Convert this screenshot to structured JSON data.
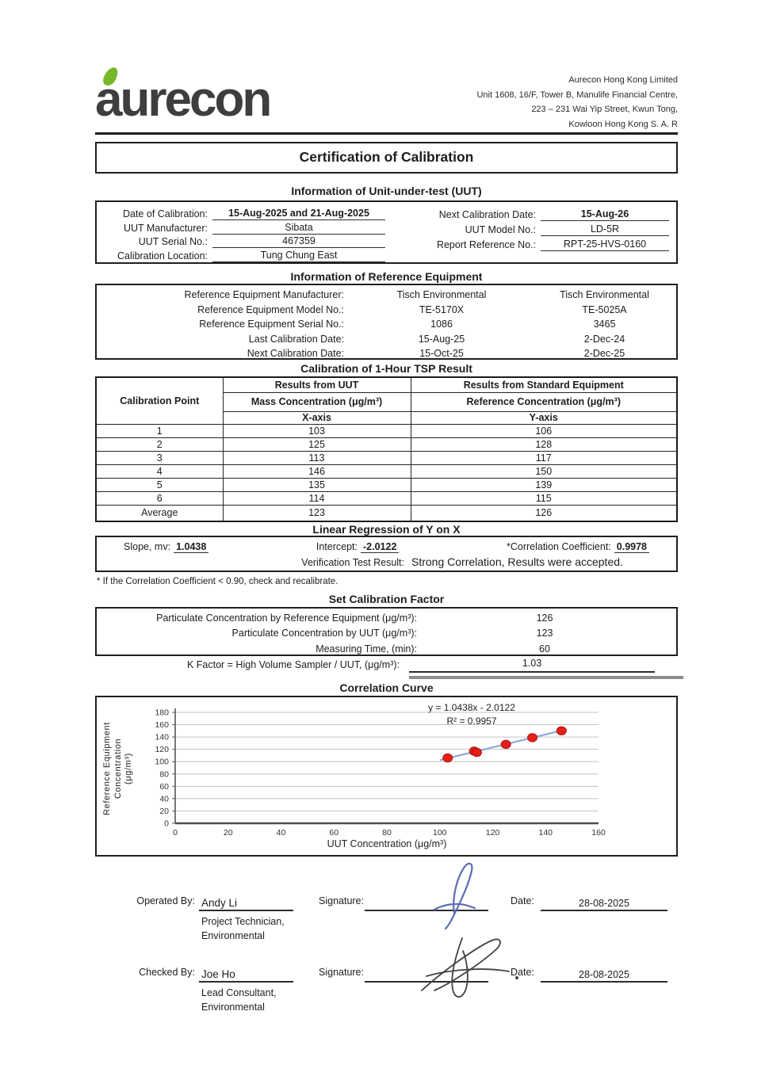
{
  "header": {
    "logo_text": "aurecon",
    "address_lines": [
      "Aurecon Hong Kong Limited",
      "Unit 1608, 16/F, Tower B, Manulife Financial Centre,",
      "223 – 231 Wai Yip Street, Kwun Tong,",
      "Kowloon Hong Kong S. A. R"
    ]
  },
  "title": "Certification of Calibration",
  "uut": {
    "section_title": "Information of Unit-under-test (UUT)",
    "left": [
      {
        "label": "Date of Calibration:",
        "value": "15-Aug-2025 and 21-Aug-2025"
      },
      {
        "label": "UUT Manufacturer:",
        "value": "Sibata"
      },
      {
        "label": "UUT Serial No.:",
        "value": "467359"
      },
      {
        "label": "Calibration Location:",
        "value": "Tung Chung East"
      }
    ],
    "right": [
      {
        "label": "Next Calibration Date:",
        "value": "15-Aug-26"
      },
      {
        "label": "UUT Model No.:",
        "value": "LD-5R"
      },
      {
        "label": "Report Reference No.:",
        "value": "RPT-25-HVS-0160"
      }
    ]
  },
  "reference": {
    "section_title": "Information of Reference Equipment",
    "rows": [
      {
        "label": "Reference Equipment Manufacturer:",
        "col1": "Tisch Environmental",
        "col2": "Tisch Environmental"
      },
      {
        "label": "Reference Equipment Model No.:",
        "col1": "TE-5170X",
        "col2": "TE-5025A"
      },
      {
        "label": "Reference Equipment Serial No.:",
        "col1": "1086",
        "col2": "3465"
      },
      {
        "label": "Last Calibration Date:",
        "col1": "15-Aug-25",
        "col2": "2-Dec-24"
      },
      {
        "label": "Next Calibration Date:",
        "col1": "15-Oct-25",
        "col2": "2-Dec-25"
      }
    ]
  },
  "tsp": {
    "section_title": "Calibration of 1-Hour TSP Result",
    "col_point": "Calibration Point",
    "col_uut": "Results from UUT",
    "col_std": "Results from Standard Equipment",
    "sub_uut": "Mass Concentration (μg/m³)",
    "sub_std": "Reference Concentration (μg/m³)",
    "axis_x": "X-axis",
    "axis_y": "Y-axis",
    "rows": [
      {
        "point": "1",
        "uut": "103",
        "std": "106"
      },
      {
        "point": "2",
        "uut": "125",
        "std": "128"
      },
      {
        "point": "3",
        "uut": "113",
        "std": "117"
      },
      {
        "point": "4",
        "uut": "146",
        "std": "150"
      },
      {
        "point": "5",
        "uut": "135",
        "std": "139"
      },
      {
        "point": "6",
        "uut": "114",
        "std": "115"
      },
      {
        "point": "Average",
        "uut": "123",
        "std": "126"
      }
    ]
  },
  "regression": {
    "section_title": "Linear Regression of Y on X",
    "slope_label": "Slope, mv:",
    "slope": "1.0438",
    "intercept_label": "Intercept:",
    "intercept": "-2.0122",
    "corr_label": "*Correlation Coefficient:",
    "corr": "0.9978",
    "verification_label": "Verification Test Result:",
    "verification_value": "Strong Correlation, Results were accepted.",
    "note": "* If the Correlation Coefficient < 0.90, check and recalibrate."
  },
  "calibration_factor": {
    "section_title": "Set Calibration Factor",
    "rows": [
      {
        "label": "Particulate Concentration by Reference Equipment (μg/m³):",
        "value": "126"
      },
      {
        "label": "Particulate Concentration by UUT (μg/m³):",
        "value": "123"
      },
      {
        "label": "Measuring Time, (min):",
        "value": "60"
      }
    ],
    "k_factor_label": "K Factor = High Volume Sampler / UUT, (μg/m³):",
    "k_factor_value": "1.03"
  },
  "chart_data": {
    "type": "scatter",
    "title": "Correlation Curve",
    "xlabel": "UUT Concentration (μg/m³)",
    "ylabel": "Reference Equipment Concentration (μg/m³)",
    "ylabel_lines": [
      "Reference Equipment",
      "Concentration",
      "(μg/m³)"
    ],
    "equation": "y = 1.0438x - 2.0122",
    "r_squared": "R² = 0.9957",
    "xlim": [
      0,
      160
    ],
    "ylim": [
      0,
      180
    ],
    "xticks": [
      0,
      20,
      40,
      60,
      80,
      100,
      120,
      140,
      160
    ],
    "yticks": [
      0,
      20,
      40,
      60,
      80,
      100,
      120,
      140,
      160,
      180
    ],
    "points": [
      [
        103,
        106
      ],
      [
        125,
        128
      ],
      [
        113,
        117
      ],
      [
        146,
        150
      ],
      [
        135,
        139
      ],
      [
        114,
        115
      ]
    ],
    "trendline": {
      "slope": 1.0438,
      "intercept": -2.0122,
      "x_start": 100,
      "x_end": 148
    },
    "point_color": "#e32119",
    "point_edge_color": "#b31217",
    "line_color": "#8ea9db",
    "grid": true,
    "legend": "none"
  },
  "signatures": [
    {
      "by_label": "Operated By:",
      "name": "Andy Li",
      "role1": "Project Technician,",
      "role2": "Environmental",
      "sig_label": "Signature:",
      "date_label": "Date:",
      "date": "28-08-2025"
    },
    {
      "by_label": "Checked By:",
      "name": "Joe Ho",
      "role1": "Lead Consultant,",
      "role2": "Environmental",
      "sig_label": "Signature:",
      "date_label": "Date:",
      "date": "28-08-2025"
    }
  ]
}
